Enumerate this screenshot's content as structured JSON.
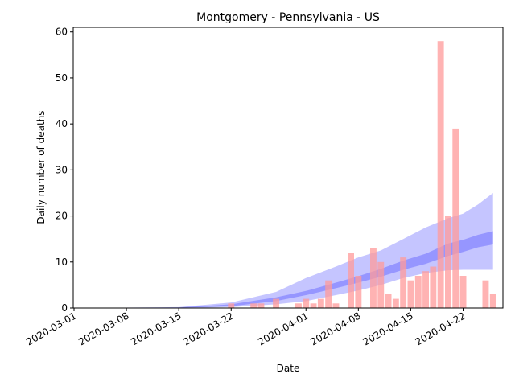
{
  "chart_data": {
    "type": "bar",
    "title": "Montgomery - Pennsylvania - US",
    "xlabel": "Date",
    "ylabel": "Daily number of deaths",
    "ylim": [
      0,
      61
    ],
    "xlim": [
      "2020-03-01",
      "2020-04-27"
    ],
    "x_ticks": [
      "2020-03-01",
      "2020-03-08",
      "2020-03-15",
      "2020-03-22",
      "2020-04-01",
      "2020-04-08",
      "2020-04-15",
      "2020-04-22"
    ],
    "y_ticks": [
      0,
      10,
      20,
      30,
      40,
      50,
      60
    ],
    "grid": false,
    "legend": "none",
    "colors": {
      "bars": "#ff9999",
      "band": "#4040ff",
      "axis": "#000000"
    },
    "bars": [
      {
        "date": "2020-03-22",
        "value": 1
      },
      {
        "date": "2020-03-25",
        "value": 1
      },
      {
        "date": "2020-03-26",
        "value": 1
      },
      {
        "date": "2020-03-28",
        "value": 2
      },
      {
        "date": "2020-03-31",
        "value": 1
      },
      {
        "date": "2020-04-01",
        "value": 2
      },
      {
        "date": "2020-04-02",
        "value": 1
      },
      {
        "date": "2020-04-03",
        "value": 2
      },
      {
        "date": "2020-04-04",
        "value": 6
      },
      {
        "date": "2020-04-05",
        "value": 1
      },
      {
        "date": "2020-04-07",
        "value": 12
      },
      {
        "date": "2020-04-08",
        "value": 7
      },
      {
        "date": "2020-04-10",
        "value": 13
      },
      {
        "date": "2020-04-11",
        "value": 10
      },
      {
        "date": "2020-04-12",
        "value": 3
      },
      {
        "date": "2020-04-13",
        "value": 2
      },
      {
        "date": "2020-04-14",
        "value": 11
      },
      {
        "date": "2020-04-15",
        "value": 6
      },
      {
        "date": "2020-04-16",
        "value": 7
      },
      {
        "date": "2020-04-17",
        "value": 8
      },
      {
        "date": "2020-04-18",
        "value": 9
      },
      {
        "date": "2020-04-19",
        "value": 58
      },
      {
        "date": "2020-04-20",
        "value": 20
      },
      {
        "date": "2020-04-21",
        "value": 39
      },
      {
        "date": "2020-04-22",
        "value": 7
      },
      {
        "date": "2020-04-25",
        "value": 6
      },
      {
        "date": "2020-04-26",
        "value": 3
      }
    ],
    "bands": {
      "dates": [
        "2020-03-01",
        "2020-03-15",
        "2020-03-22",
        "2020-03-28",
        "2020-04-01",
        "2020-04-05",
        "2020-04-08",
        "2020-04-11",
        "2020-04-14",
        "2020-04-17",
        "2020-04-20",
        "2020-04-22",
        "2020-04-24",
        "2020-04-26"
      ],
      "outer_low": [
        0,
        0,
        0.2,
        0.8,
        1.5,
        2.8,
        3.8,
        5.0,
        6.5,
        7.6,
        8.2,
        8.3,
        8.3,
        8.3
      ],
      "outer_high": [
        0,
        0.2,
        1.2,
        3.5,
        6.5,
        9.0,
        11.0,
        12.5,
        15.0,
        17.5,
        19.5,
        20.5,
        22.5,
        25.0
      ],
      "inner_low": [
        0,
        0.05,
        0.4,
        1.5,
        2.8,
        4.3,
        5.5,
        6.8,
        8.3,
        9.6,
        11.3,
        12.2,
        13.2,
        13.8
      ],
      "inner_high": [
        0,
        0.1,
        0.8,
        2.3,
        3.7,
        5.5,
        6.9,
        8.5,
        10.3,
        11.8,
        14.0,
        14.8,
        15.9,
        16.7
      ]
    }
  }
}
